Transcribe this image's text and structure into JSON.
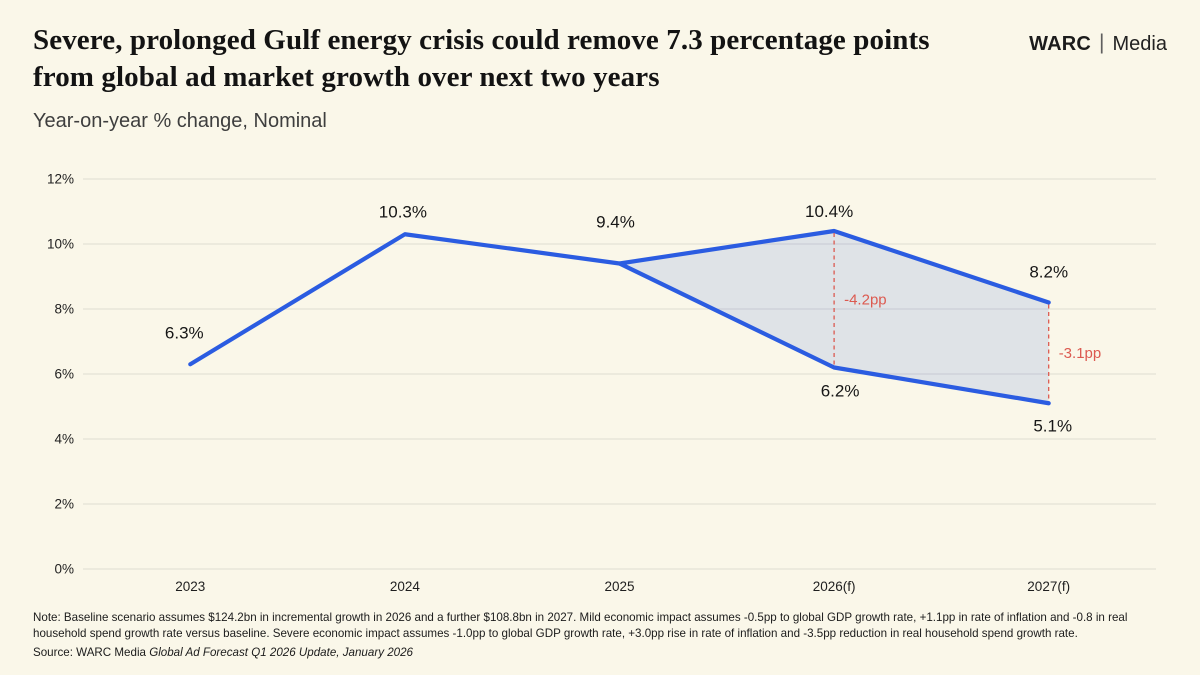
{
  "header": {
    "title": "Severe, prolonged Gulf energy crisis could remove 7.3 percentage points from global ad market growth over next two years",
    "subtitle": "Year-on-year % change, Nominal",
    "brand": {
      "name": "WARC",
      "divider": "|",
      "suffix": "Media"
    }
  },
  "chart_data": {
    "type": "line",
    "title": "Severe, prolonged Gulf energy crisis could remove 7.3 percentage points from global ad market growth over next two years",
    "subtitle": "Year-on-year % change, Nominal",
    "x": [
      "2023",
      "2024",
      "2025",
      "2026(f)",
      "2027(f)"
    ],
    "series": [
      {
        "name": "Baseline scenario",
        "values": [
          6.3,
          10.3,
          9.4,
          10.4,
          8.2
        ]
      },
      {
        "name": "Severe economic impact scenario",
        "values": [
          null,
          null,
          9.4,
          6.2,
          5.1
        ]
      }
    ],
    "data_labels": [
      "6.3%",
      "10.3%",
      "9.4%",
      "10.4%",
      "8.2%",
      "6.2%",
      "5.1%"
    ],
    "annotations": [
      {
        "x_index": 3,
        "label": "-4.2pp"
      },
      {
        "x_index": 4,
        "label": "-3.1pp"
      }
    ],
    "ylim": [
      0,
      12
    ],
    "ytick_step": 2,
    "ytick_suffix": "%",
    "yticks": [
      "0%",
      "2%",
      "4%",
      "6%",
      "8%",
      "10%",
      "12%"
    ],
    "grid": true,
    "legend": false,
    "colors": {
      "line": "#2b5ce1",
      "band_fill": "#2b5ce1",
      "annotation_red": "#dc5a50",
      "gridline": "#e4e1d6"
    }
  },
  "footer": {
    "note": "Note: Baseline scenario assumes $124.2bn in incremental growth in 2026 and a further $108.8bn in 2027. Mild economic impact assumes -0.5pp to global GDP growth rate, +1.1pp in rate of inflation and -0.8 in real household spend growth rate versus baseline. Severe economic impact assumes -1.0pp to global GDP growth rate, +3.0pp rise in rate of inflation and -3.5pp reduction in real household spend growth rate.",
    "source_prefix": "Source: WARC Media ",
    "source_italic": "Global Ad Forecast Q1 2026 Update, January 2026"
  }
}
